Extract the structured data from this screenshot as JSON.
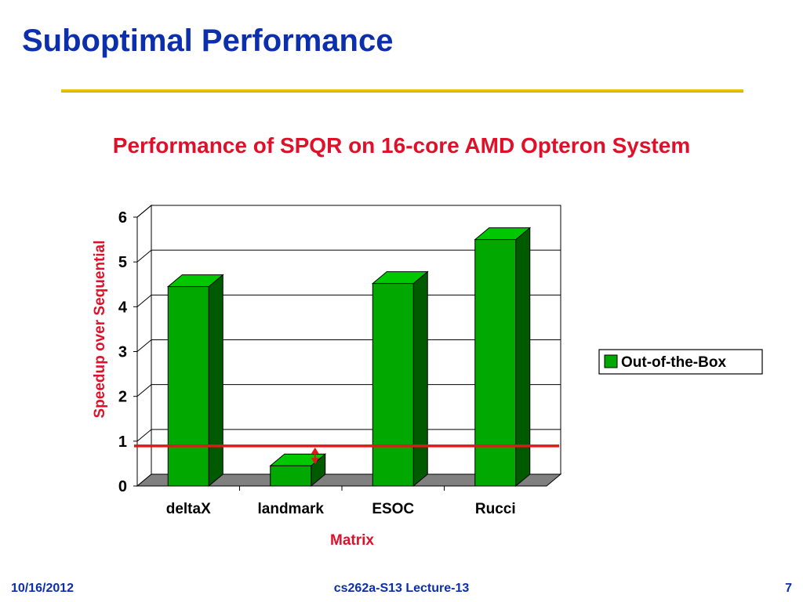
{
  "slide": {
    "title": "Suboptimal Performance"
  },
  "footer": {
    "date": "10/16/2012",
    "course": "cs262a-S13 Lecture-13",
    "page": "7"
  },
  "colors": {
    "title": "#0b2fad",
    "accent_red": "#e0102a",
    "rule": "#e8c200",
    "bar_front": "#00a800",
    "bar_side": "#005a00",
    "bar_top": "#00c800",
    "baseline": "#e01818"
  },
  "chart_data": {
    "type": "bar",
    "title": "Performance of SPQR on 16-core AMD Opteron System",
    "xlabel": "Matrix",
    "ylabel": "Speedup over Sequential",
    "categories": [
      "deltaX",
      "landmark",
      "ESOC",
      "Rucci"
    ],
    "series": [
      {
        "name": "Out-of-the-Box",
        "values": [
          4.45,
          0.45,
          4.52,
          5.5
        ]
      }
    ],
    "ylim": [
      0,
      6
    ],
    "yticks": [
      0,
      1,
      2,
      3,
      4,
      5,
      6
    ],
    "grid": true,
    "legend_position": "right",
    "annotation": {
      "type": "reference-line",
      "y": 1,
      "color": "#e01818",
      "arrow_category": "landmark"
    }
  }
}
